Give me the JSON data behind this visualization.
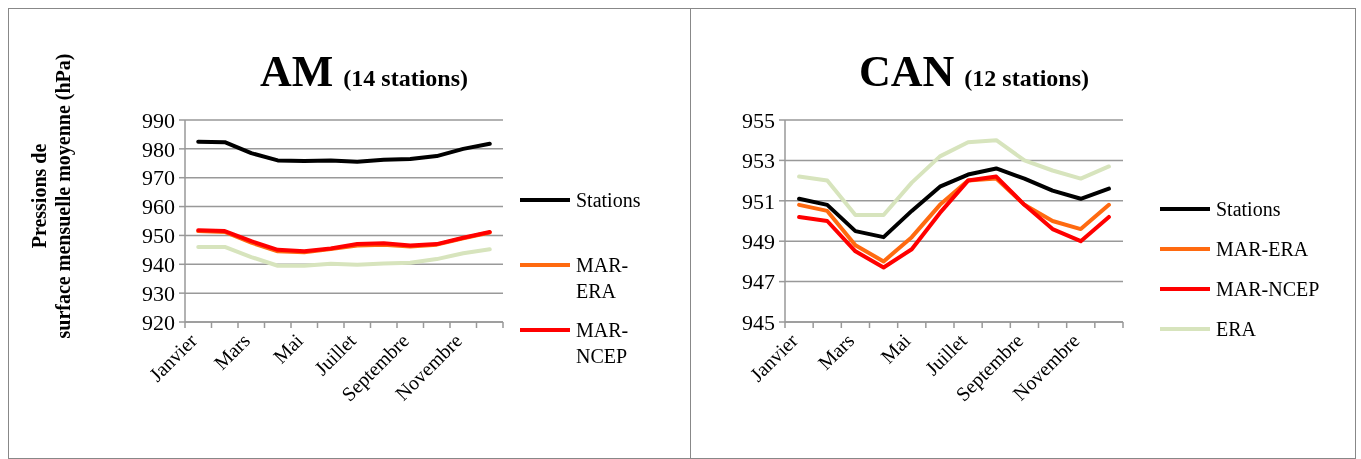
{
  "chart_data": [
    {
      "type": "line",
      "title": "AM",
      "subtitle": "(14 stations)",
      "ylabel": "Pressions de surface mensuelle moyenne (hPa)",
      "categories": [
        "Janvier",
        null,
        "Mars",
        null,
        "Mai",
        null,
        "Juillet",
        null,
        "Septembre",
        null,
        "Novembre",
        null
      ],
      "ylim": [
        920,
        990
      ],
      "yticks": [
        920,
        930,
        940,
        950,
        960,
        970,
        980,
        990
      ],
      "grid": "y",
      "legend": "right",
      "series": [
        {
          "name": "Stations",
          "color": "#000000",
          "values": [
            982.5,
            982.3,
            978.5,
            976,
            975.8,
            976,
            975.5,
            976.2,
            976.5,
            977.5,
            980,
            981.8
          ]
        },
        {
          "name": "MAR-ERA",
          "color": "#ff6a10",
          "values": [
            951.5,
            951.2,
            947.5,
            944.5,
            944.2,
            945.3,
            946.5,
            946.8,
            946.2,
            946.8,
            949,
            951
          ]
        },
        {
          "name": "MAR-NCEP",
          "color": "#ff0000",
          "values": [
            951.8,
            951.5,
            948,
            945,
            944.5,
            945.5,
            947,
            947.3,
            946.5,
            947,
            949.2,
            951.2
          ]
        },
        {
          "color": "#d7e4bd",
          "values": [
            946,
            946,
            942.5,
            939.5,
            939.5,
            940.2,
            939.8,
            940.3,
            940.5,
            941.8,
            943.8,
            945.2
          ]
        }
      ]
    },
    {
      "type": "line",
      "title": "CAN",
      "subtitle": "(12 stations)",
      "categories": [
        "Janvier",
        null,
        "Mars",
        null,
        "Mai",
        null,
        "Juillet",
        null,
        "Septembre",
        null,
        "Novembre",
        null
      ],
      "ylim": [
        945,
        955
      ],
      "yticks": [
        945,
        947,
        949,
        951,
        953,
        955
      ],
      "grid": "y",
      "legend": "right",
      "series": [
        {
          "name": "Stations",
          "color": "#000000",
          "values": [
            951.1,
            950.8,
            949.5,
            949.2,
            950.5,
            951.7,
            952.3,
            952.6,
            952.1,
            951.5,
            951.1,
            951.6
          ]
        },
        {
          "name": "MAR-ERA",
          "color": "#ff6a10",
          "values": [
            950.8,
            950.5,
            948.8,
            948,
            949.2,
            950.8,
            952,
            952.1,
            950.8,
            950,
            949.6,
            950.8
          ]
        },
        {
          "name": "MAR-NCEP",
          "color": "#ff0000",
          "values": [
            950.2,
            950,
            948.5,
            947.7,
            948.6,
            950.4,
            952,
            952.2,
            950.8,
            949.6,
            949,
            950.2
          ]
        },
        {
          "name": "ERA",
          "color": "#d7e4bd",
          "values": [
            952.2,
            952,
            950.3,
            950.3,
            951.9,
            953.2,
            953.9,
            954,
            953,
            952.5,
            952.1,
            952.7
          ]
        }
      ]
    }
  ]
}
